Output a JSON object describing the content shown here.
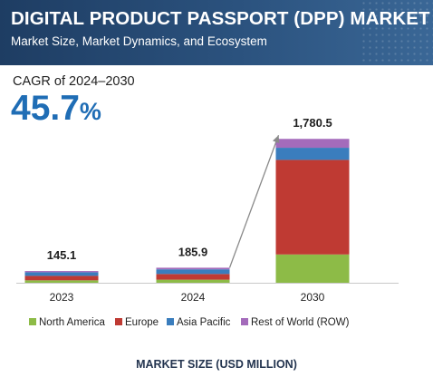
{
  "header": {
    "title": "DIGITAL PRODUCT PASSPORT (DPP) MARKET",
    "subtitle": "Market Size, Market Dynamics, and Ecosystem"
  },
  "cagr": {
    "label": "CAGR of 2024–2030",
    "value": "45.7",
    "unit": "%"
  },
  "footer_label": "MARKET SIZE (USD MILLION)",
  "chart_data": {
    "type": "bar",
    "stacked": true,
    "categories": [
      "2023",
      "2024",
      "2030"
    ],
    "totals": [
      "145.1",
      "185.9",
      "1,780.5"
    ],
    "series": [
      {
        "name": "North America",
        "color": "#8dbb47",
        "values": [
          30,
          38,
          350
        ]
      },
      {
        "name": "Europe",
        "color": "#bf3a33",
        "values": [
          55,
          70,
          1170
        ]
      },
      {
        "name": "Asia Pacific",
        "color": "#3a7dbd",
        "values": [
          45,
          58,
          150
        ]
      },
      {
        "name": "Rest of World (ROW)",
        "color": "#a46bbb",
        "values": [
          15,
          20,
          110
        ]
      }
    ],
    "ylim": [
      0,
      1850
    ],
    "grid": false,
    "legend_position": "bottom",
    "growth_arrow": {
      "from": "2024",
      "to": "2030"
    }
  }
}
